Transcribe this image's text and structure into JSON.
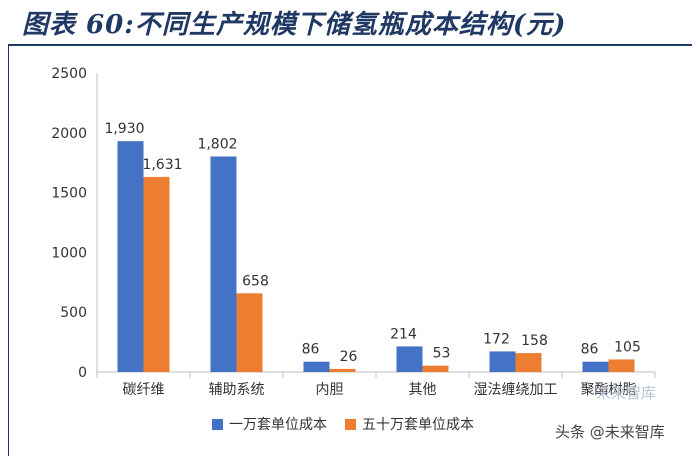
{
  "title": "图表 60:不同生产规模下储氢瓶成本结构(元)",
  "watermark": "头条 @未来智库",
  "watermark_ghost": "未来智库",
  "colors": {
    "series1": "#4472c4",
    "series2": "#ed7d31",
    "title": "#1f3864",
    "axis": "#bfbfbf"
  },
  "chart_data": {
    "type": "bar",
    "categories": [
      "碳纤维",
      "辅助系统",
      "内胆",
      "其他",
      "湿法缠绕加工",
      "聚酯树脂"
    ],
    "series": [
      {
        "name": "一万套单位成本",
        "values": [
          1930,
          1802,
          86,
          214,
          172,
          86
        ],
        "labels": [
          "1,930",
          "1,802",
          "86",
          "214",
          "172",
          "86"
        ]
      },
      {
        "name": "五十万套单位成本",
        "values": [
          1631,
          658,
          26,
          53,
          158,
          105
        ],
        "labels": [
          "1,631",
          "658",
          "26",
          "53",
          "158",
          "105"
        ]
      }
    ],
    "y_ticks": [
      "0",
      "500",
      "1000",
      "1500",
      "2000",
      "2500"
    ],
    "ylim": [
      0,
      2500
    ],
    "grid": false,
    "legend": "bottom"
  }
}
